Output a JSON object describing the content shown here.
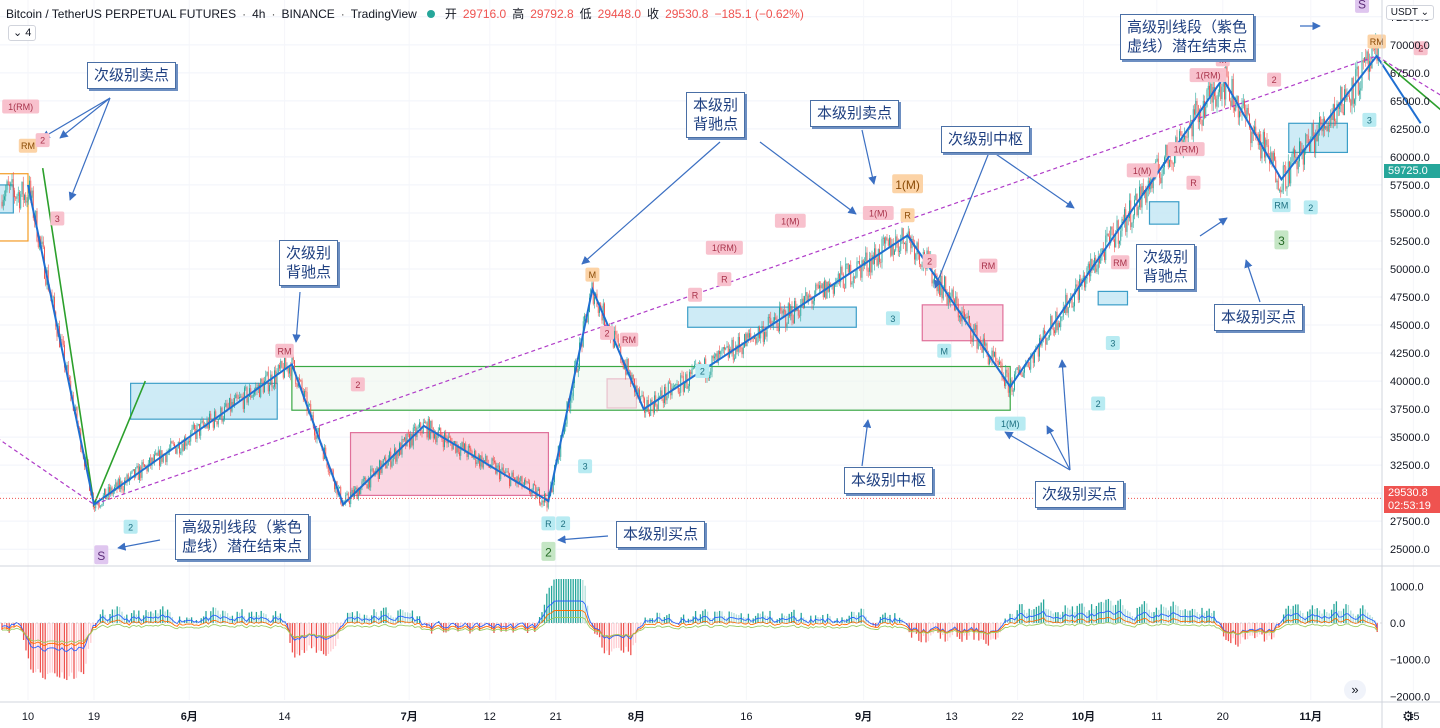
{
  "header": {
    "symbol": "Bitcoin / TetherUS PERPETUAL FUTURES",
    "interval": "4h",
    "exchange": "BINANCE",
    "platform": "TradingView",
    "open_label": "开",
    "open": "29716.0",
    "high_label": "高",
    "high": "29792.8",
    "low_label": "低",
    "low": "29448.0",
    "close_label": "收",
    "close": "29530.8",
    "change": "−185.1 (−0.62%)",
    "indicator_count": "4",
    "currency": "USDT"
  },
  "price_tags": {
    "current_price": "29530.8",
    "countdown": "02:53:19",
    "marker_price": "59725.0"
  },
  "colors": {
    "up": "#26a69a",
    "down": "#ef5350",
    "stroke": "#1f6fd1",
    "purple": "#b03cc8",
    "green_line": "#2ca02c",
    "zone_blue": "#8fd2ea",
    "zone_pink": "#f7b2c8",
    "callout": "#1e3f80"
  },
  "callouts": [
    {
      "text": "次级别卖点"
    },
    {
      "text": "本级别\n背驰点"
    },
    {
      "text": "本级别卖点"
    },
    {
      "text": "次级别中枢"
    },
    {
      "text": "高级别线段（紫色\n虚线）潜在结束点"
    },
    {
      "text": "次级别\n背驰点"
    },
    {
      "text": "高级别线段（紫色\n虚线）潜在结束点"
    },
    {
      "text": "本级别买点"
    },
    {
      "text": "本级别中枢"
    },
    {
      "text": "次级别买点"
    },
    {
      "text": "次级别\n背驰点"
    },
    {
      "text": "本级别买点"
    }
  ],
  "chart_data": {
    "type": "candlestick",
    "title": "",
    "price_axis_labels": [
      "72500.0",
      "70000.0",
      "67500.0",
      "65000.0",
      "62500.0",
      "60000.0",
      "57500.0",
      "55000.0",
      "52500.0",
      "50000.0",
      "47500.0",
      "45000.0",
      "42500.0",
      "40000.0",
      "37500.0",
      "35000.0",
      "32500.0",
      "30000.0",
      "27500.0",
      "25000.0"
    ],
    "price_range": [
      23500,
      74000
    ],
    "x_axis_labels": [
      "10",
      "19",
      "6月",
      "14",
      "7月",
      "12",
      "21",
      "8月",
      "16",
      "9月",
      "13",
      "22",
      "10月",
      "11",
      "20",
      "11月",
      "15"
    ],
    "zigzag_stroke": [
      {
        "date": "2021-05-10",
        "price": 57500
      },
      {
        "date": "2021-05-19",
        "price": 29000
      },
      {
        "date": "2021-06-15",
        "price": 41500
      },
      {
        "date": "2021-06-22",
        "price": 29000
      },
      {
        "date": "2021-07-03",
        "price": 36000
      },
      {
        "date": "2021-07-20",
        "price": 29300
      },
      {
        "date": "2021-07-26",
        "price": 48200
      },
      {
        "date": "2021-08-02",
        "price": 37500
      },
      {
        "date": "2021-09-07",
        "price": 53000
      },
      {
        "date": "2021-09-21",
        "price": 39500
      },
      {
        "date": "2021-10-20",
        "price": 67000
      },
      {
        "date": "2021-10-28",
        "price": 58000
      },
      {
        "date": "2021-11-10",
        "price": 69000
      },
      {
        "date": "2021-11-16",
        "price": 63000
      }
    ],
    "segment_line": [
      {
        "date": "2021-05-12",
        "price": 59000
      },
      {
        "date": "2021-05-19",
        "price": 29000
      },
      {
        "date": "2021-05-26",
        "price": 40000
      }
    ],
    "higher_level_trend": [
      {
        "date": "2021-04-20",
        "price": 42000
      },
      {
        "date": "2021-05-19",
        "price": 29000
      },
      {
        "date": "2021-11-10",
        "price": 69000
      },
      {
        "date": "2021-11-20",
        "price": 65000
      }
    ],
    "pivot_zones": [
      {
        "type": "blue",
        "start": "2021-04-20",
        "end": "2021-05-08",
        "low": 55000,
        "high": 57500
      },
      {
        "type": "orange",
        "start": "2021-04-20",
        "end": "2021-05-10",
        "low": 52500,
        "high": 58500
      },
      {
        "type": "blue",
        "start": "2021-05-24",
        "end": "2021-06-13",
        "low": 36600,
        "high": 39800
      },
      {
        "type": "pink",
        "start": "2021-06-23",
        "end": "2021-07-20",
        "low": 29800,
        "high": 35400
      },
      {
        "type": "pink",
        "start": "2021-07-28",
        "end": "2021-08-01",
        "low": 37600,
        "high": 40200
      },
      {
        "type": "blue",
        "start": "2021-08-08",
        "end": "2021-08-31",
        "low": 44800,
        "high": 46600
      },
      {
        "type": "pink",
        "start": "2021-09-09",
        "end": "2021-09-20",
        "low": 43600,
        "high": 46800
      },
      {
        "type": "blue",
        "start": "2021-10-03",
        "end": "2021-10-07",
        "low": 46800,
        "high": 48000
      },
      {
        "type": "blue",
        "start": "2021-10-10",
        "end": "2021-10-14",
        "low": 54000,
        "high": 56000
      },
      {
        "type": "blue",
        "start": "2021-10-29",
        "end": "2021-11-06",
        "low": 60400,
        "high": 63000
      },
      {
        "type": "green",
        "start": "2021-06-15",
        "end": "2021-09-21",
        "low": 37400,
        "high": 41300
      }
    ],
    "signal_markers": [
      {
        "label": "1(RM)",
        "date": "2021-05-09",
        "price": 64500,
        "kind": "sell"
      },
      {
        "label": "RM",
        "date": "2021-05-10",
        "price": 61000,
        "kind": "sell_orange"
      },
      {
        "label": "2",
        "date": "2021-05-12",
        "price": 61500,
        "kind": "sell"
      },
      {
        "label": "3",
        "date": "2021-05-14",
        "price": 54500,
        "kind": "sell"
      },
      {
        "label": "2",
        "date": "2021-05-24",
        "price": 27000,
        "kind": "buy"
      },
      {
        "label": "S",
        "date": "2021-05-20",
        "price": 24500,
        "kind": "purple"
      },
      {
        "label": "RM",
        "date": "2021-06-14",
        "price": 42700,
        "kind": "sell"
      },
      {
        "label": "2",
        "date": "2021-06-24",
        "price": 39700,
        "kind": "sell"
      },
      {
        "label": "R",
        "date": "2021-07-20",
        "price": 27300,
        "kind": "buy"
      },
      {
        "label": "2",
        "date": "2021-07-22",
        "price": 27300,
        "kind": "buy"
      },
      {
        "label": "2",
        "date": "2021-07-20",
        "price": 24800,
        "kind": "buy_green"
      },
      {
        "label": "3",
        "date": "2021-07-25",
        "price": 32400,
        "kind": "buy"
      },
      {
        "label": "M",
        "date": "2021-07-26",
        "price": 49500,
        "kind": "sell_orange"
      },
      {
        "label": "2",
        "date": "2021-07-28",
        "price": 44300,
        "kind": "sell"
      },
      {
        "label": "RM",
        "date": "2021-07-31",
        "price": 43700,
        "kind": "sell"
      },
      {
        "label": "2",
        "date": "2021-08-10",
        "price": 40900,
        "kind": "buy"
      },
      {
        "label": "R",
        "date": "2021-08-09",
        "price": 47700,
        "kind": "sell"
      },
      {
        "label": "1(RM)",
        "date": "2021-08-13",
        "price": 51900,
        "kind": "sell"
      },
      {
        "label": "R",
        "date": "2021-08-13",
        "price": 49100,
        "kind": "sell"
      },
      {
        "label": "1(M)",
        "date": "2021-08-22",
        "price": 54300,
        "kind": "sell"
      },
      {
        "label": "1(M)",
        "date": "2021-09-03",
        "price": 55000,
        "kind": "sell"
      },
      {
        "label": "1(M)",
        "date": "2021-09-07",
        "price": 57600,
        "kind": "sell_orange"
      },
      {
        "label": "R",
        "date": "2021-09-07",
        "price": 54800,
        "kind": "sell_orange"
      },
      {
        "label": "2",
        "date": "2021-09-10",
        "price": 50700,
        "kind": "sell"
      },
      {
        "label": "3",
        "date": "2021-09-05",
        "price": 45600,
        "kind": "buy"
      },
      {
        "label": "M",
        "date": "2021-09-12",
        "price": 42700,
        "kind": "buy"
      },
      {
        "label": "RM",
        "date": "2021-09-18",
        "price": 50300,
        "kind": "sell"
      },
      {
        "label": "1(M)",
        "date": "2021-09-21",
        "price": 36200,
        "kind": "buy"
      },
      {
        "label": "2",
        "date": "2021-10-03",
        "price": 38000,
        "kind": "buy"
      },
      {
        "label": "3",
        "date": "2021-10-05",
        "price": 43400,
        "kind": "buy"
      },
      {
        "label": "RM",
        "date": "2021-10-06",
        "price": 50600,
        "kind": "sell"
      },
      {
        "label": "3",
        "date": "2021-10-10",
        "price": 50200,
        "kind": "buy"
      },
      {
        "label": "1(M)",
        "date": "2021-10-09",
        "price": 58800,
        "kind": "sell"
      },
      {
        "label": "1(RM)",
        "date": "2021-10-15",
        "price": 60700,
        "kind": "sell"
      },
      {
        "label": "R",
        "date": "2021-10-16",
        "price": 57700,
        "kind": "sell"
      },
      {
        "label": "1(RM)",
        "date": "2021-10-18",
        "price": 67300,
        "kind": "sell"
      },
      {
        "label": "M",
        "date": "2021-10-20",
        "price": 68700,
        "kind": "sell"
      },
      {
        "label": "2",
        "date": "2021-10-27",
        "price": 66900,
        "kind": "sell"
      },
      {
        "label": "RM",
        "date": "2021-10-28",
        "price": 55700,
        "kind": "buy"
      },
      {
        "label": "2",
        "date": "2021-11-01",
        "price": 55500,
        "kind": "buy"
      },
      {
        "label": "3",
        "date": "2021-10-28",
        "price": 52600,
        "kind": "buy_green"
      },
      {
        "label": "3",
        "date": "2021-11-09",
        "price": 63300,
        "kind": "buy"
      },
      {
        "label": "RM",
        "date": "2021-11-10",
        "price": 70300,
        "kind": "sell_orange"
      },
      {
        "label": "S",
        "date": "2021-11-08",
        "price": 73700,
        "kind": "purple"
      },
      {
        "label": "2",
        "date": "2021-11-16",
        "price": 69700,
        "kind": "sell"
      }
    ],
    "macd_axis_labels": [
      "1000.0",
      "0.0",
      "−1000.0",
      "−2000.0"
    ],
    "macd_range": [
      -2100,
      1500
    ]
  }
}
